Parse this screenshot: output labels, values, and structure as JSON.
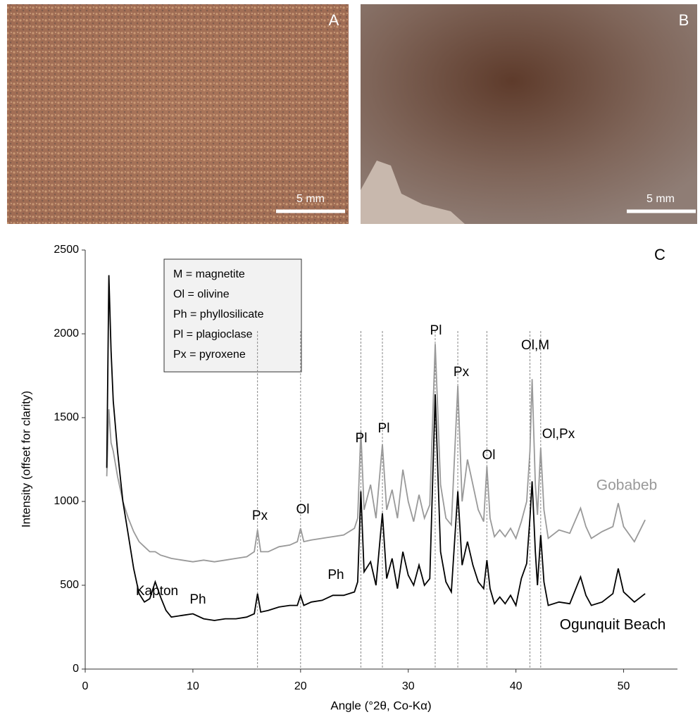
{
  "panels": {
    "a": {
      "label": "A",
      "scale_bar": "5 mm"
    },
    "b": {
      "label": "B",
      "scale_bar": "5 mm"
    }
  },
  "chart_data": {
    "type": "line",
    "panel_label": "C",
    "x_label": "Angle (°2θ, Co-Kα)",
    "y_label": "Intensity (offset for clarity)",
    "xlim": [
      0,
      55
    ],
    "ylim": [
      0,
      2500
    ],
    "xticks": [
      0,
      10,
      20,
      30,
      40,
      50
    ],
    "yticks": [
      0,
      500,
      1000,
      1500,
      2000,
      2500
    ],
    "grid": false,
    "x": [
      2,
      2.2,
      2.4,
      2.6,
      3,
      3.5,
      4,
      4.5,
      5,
      5.5,
      6,
      6.5,
      7,
      7.5,
      8,
      9,
      10,
      11,
      12,
      13,
      14,
      15,
      15.7,
      16,
      16.3,
      17,
      18,
      19,
      19.7,
      20,
      20.3,
      21,
      22,
      23,
      24,
      25,
      25.3,
      25.6,
      25.9,
      26.5,
      27,
      27.6,
      28,
      28.5,
      29,
      29.5,
      30,
      30.5,
      31,
      31.5,
      32,
      32.5,
      33,
      33.5,
      34,
      34.6,
      35,
      35.5,
      36,
      36.5,
      37,
      37.3,
      37.6,
      38,
      38.5,
      39,
      39.5,
      40,
      40.5,
      41,
      41.3,
      41.5,
      41.8,
      42,
      42.3,
      42.6,
      43,
      44,
      45,
      46,
      46.5,
      47,
      48,
      49,
      49.5,
      50,
      51,
      52
    ],
    "series": [
      {
        "name": "Gobabeb",
        "color": "#999999",
        "values": [
          1150,
          1550,
          1350,
          1300,
          1150,
          1000,
          900,
          820,
          760,
          730,
          700,
          700,
          680,
          670,
          660,
          650,
          640,
          650,
          640,
          650,
          660,
          670,
          700,
          830,
          700,
          700,
          730,
          740,
          760,
          840,
          760,
          770,
          780,
          790,
          800,
          840,
          900,
          1420,
          950,
          1100,
          900,
          1340,
          950,
          1070,
          900,
          1190,
          1000,
          880,
          1040,
          900,
          980,
          1940,
          1100,
          900,
          860,
          1690,
          1000,
          1250,
          1100,
          950,
          880,
          1210,
          900,
          790,
          830,
          790,
          840,
          780,
          880,
          1000,
          1300,
          1730,
          1100,
          920,
          1320,
          950,
          780,
          830,
          810,
          960,
          850,
          780,
          820,
          850,
          990,
          850,
          760,
          890
        ]
      },
      {
        "name": "Ogunquit Beach",
        "color": "#000000",
        "values": [
          1200,
          2350,
          1900,
          1600,
          1300,
          1000,
          800,
          600,
          450,
          400,
          420,
          520,
          430,
          350,
          310,
          320,
          330,
          300,
          290,
          300,
          300,
          310,
          330,
          450,
          340,
          350,
          370,
          380,
          380,
          440,
          380,
          400,
          410,
          440,
          440,
          460,
          520,
          1060,
          580,
          640,
          500,
          930,
          540,
          660,
          480,
          700,
          560,
          500,
          620,
          500,
          540,
          1640,
          700,
          520,
          460,
          1060,
          620,
          760,
          620,
          520,
          480,
          650,
          480,
          390,
          430,
          390,
          440,
          380,
          540,
          630,
          900,
          1120,
          700,
          500,
          800,
          520,
          380,
          400,
          390,
          550,
          440,
          380,
          400,
          450,
          600,
          460,
          400,
          450
        ]
      }
    ],
    "reference_lines": [
      16,
      20,
      25.6,
      27.6,
      32.5,
      34.6,
      37.3,
      41.3,
      42.3
    ],
    "legend_box": [
      "M = magnetite",
      "Ol = olivine",
      "Ph = phyllosilicate",
      "Pl = plagioclase",
      "Px = pyroxene"
    ],
    "annotations": [
      "Kapton",
      "Ph",
      "Ph",
      "Px",
      "Ol",
      "Pl",
      "Pl",
      "Pl",
      "Px",
      "Ol",
      "Ol,M",
      "Ol,Px"
    ]
  }
}
